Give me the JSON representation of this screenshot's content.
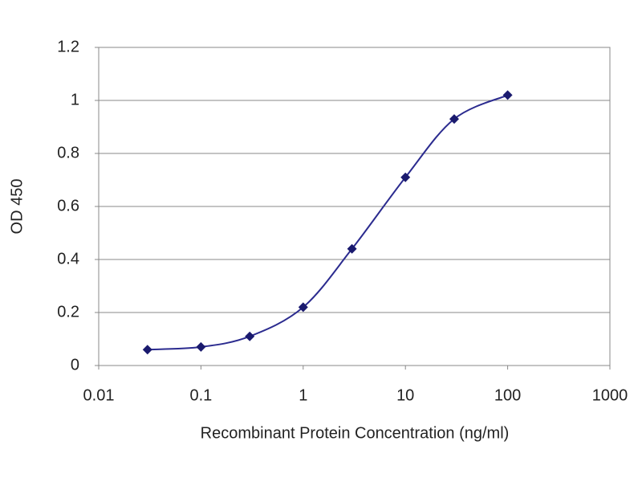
{
  "chart_data": {
    "type": "line",
    "x_label": "Recombinant Protein Concentration (ng/ml)",
    "y_label": "OD 450",
    "x": [
      0.03,
      0.1,
      0.3,
      1,
      3,
      10,
      30,
      100
    ],
    "series": [
      {
        "color": "#2b2b8f",
        "values": [
          0.06,
          0.07,
          0.11,
          0.22,
          0.44,
          0.71,
          0.93,
          1.02
        ]
      }
    ],
    "xlim": [
      0.01,
      1000
    ],
    "xticks": [
      0.01,
      0.1,
      1,
      10,
      100,
      1000
    ],
    "xlog": true,
    "ylim": [
      0,
      1.2
    ],
    "yticks": [
      0,
      0.2,
      0.4,
      0.6,
      0.8,
      1,
      1.2
    ],
    "grid": true
  }
}
